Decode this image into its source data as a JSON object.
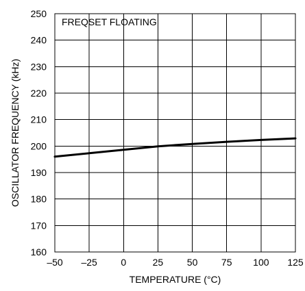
{
  "chart_data": {
    "type": "line",
    "title": "",
    "annotation": "FREQSET FLOATING",
    "xlabel": "TEMPERATURE (°C)",
    "ylabel": "OSCILLATOR FREQUENCY (kHz)",
    "xlim": [
      -50,
      125
    ],
    "ylim": [
      160,
      250
    ],
    "xticks": [
      "–50",
      "–25",
      "0",
      "25",
      "50",
      "75",
      "100",
      "125"
    ],
    "yticks": [
      "160",
      "170",
      "180",
      "190",
      "200",
      "210",
      "220",
      "230",
      "240",
      "250"
    ],
    "grid": true,
    "series": [
      {
        "x": [
          -50,
          -25,
          0,
          25,
          50,
          75,
          100,
          125
        ],
        "y": [
          196,
          197.3,
          198.6,
          199.9,
          200.8,
          201.6,
          202.3,
          202.9
        ]
      }
    ]
  }
}
